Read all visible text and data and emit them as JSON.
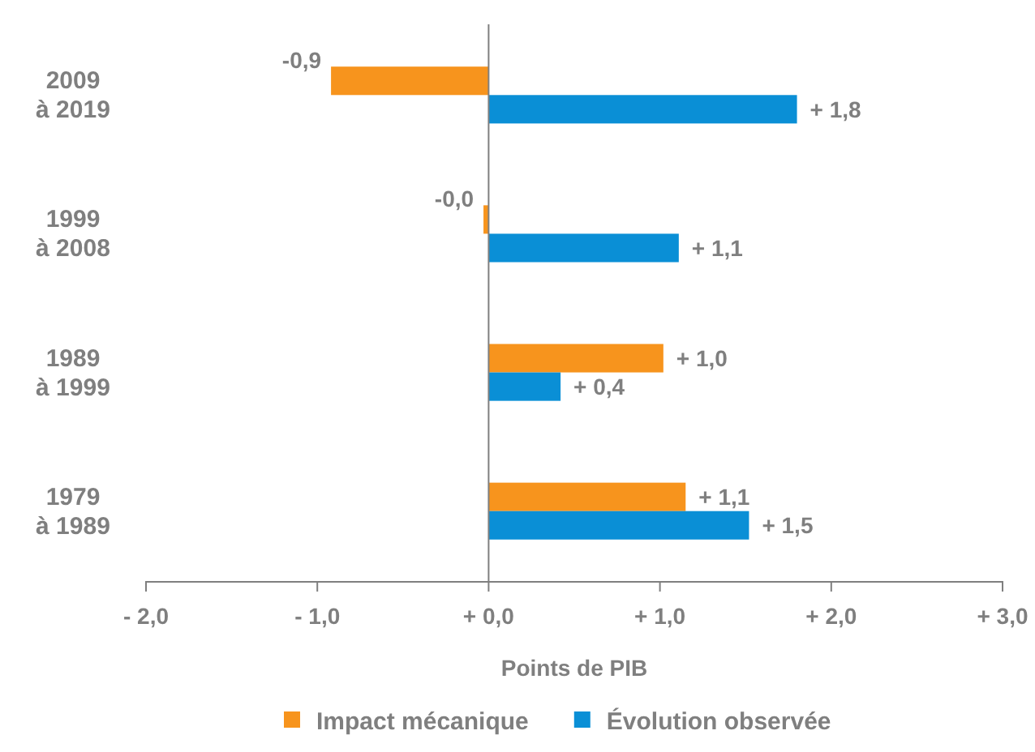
{
  "chart_data": {
    "type": "bar",
    "orientation": "horizontal",
    "xlabel": "Points de PIB",
    "categories": [
      "2009\nà 2019",
      "1999\nà 2008",
      "1989\nà 1999",
      "1979\nà 1989"
    ],
    "series": [
      {
        "name": "Impact mécanique",
        "color": "#f7941d",
        "values": [
          -0.92,
          -0.03,
          1.02,
          1.15
        ],
        "value_labels": [
          "-0,9",
          "-0,0",
          "+ 1,0",
          "+ 1,1"
        ]
      },
      {
        "name": "Évolution observée",
        "color": "#0a8fd6",
        "values": [
          1.8,
          1.11,
          0.42,
          1.52
        ],
        "value_labels": [
          "+ 1,8",
          "+ 1,1",
          "+ 0,4",
          "+ 1,5"
        ]
      }
    ],
    "xlim": [
      -2,
      3
    ],
    "xticks": [
      {
        "value": -2,
        "label": "- 2,0"
      },
      {
        "value": -1,
        "label": "- 1,0"
      },
      {
        "value": 0,
        "label": "+ 0,0"
      },
      {
        "value": 1,
        "label": "+ 1,0"
      },
      {
        "value": 2,
        "label": "+ 2,0"
      },
      {
        "value": 3,
        "label": "+ 3,0"
      }
    ],
    "legend": "bottom"
  }
}
